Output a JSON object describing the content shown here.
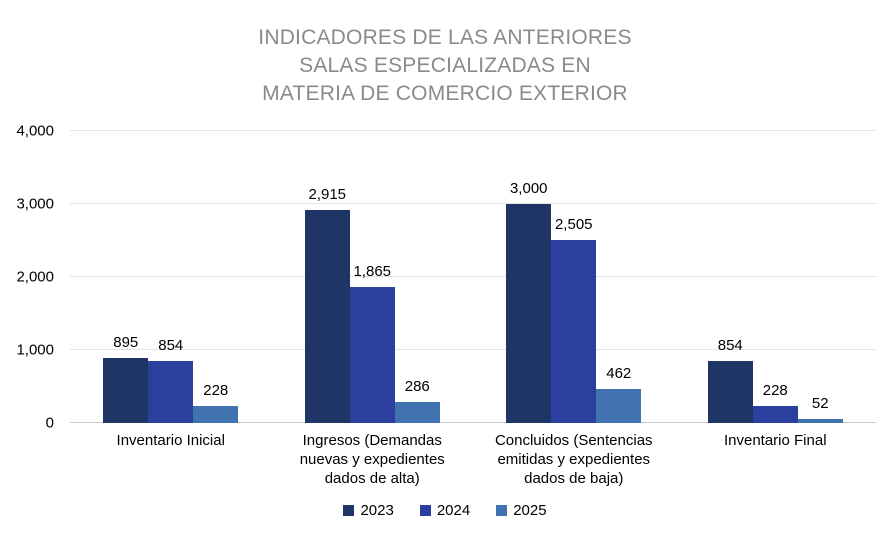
{
  "title": "INDICADORES DE LAS ANTERIORES\nSALAS ESPECIALIZADAS EN\nMATERIA DE COMERCIO EXTERIOR",
  "colors": {
    "title_text": "#8a8a8a",
    "grid": "#e3e3e3",
    "baseline": "#c9c9c9",
    "label_text": "#000000",
    "series_2023": "#1f3566",
    "series_2024": "#2b3f9e",
    "series_2025": "#4172b0"
  },
  "chart_data": {
    "type": "bar",
    "title": "INDICADORES DE LAS ANTERIORES SALAS ESPECIALIZADAS EN MATERIA DE COMERCIO EXTERIOR",
    "categories": [
      "Inventario Inicial",
      "Ingresos (Demandas nuevas y expedientes dados de alta)",
      "Concluidos (Sentencias emitidas y expedientes dados de baja)",
      "Inventario Final"
    ],
    "series": [
      {
        "name": "2023",
        "color": "#1f3566",
        "values": [
          895,
          2915,
          3000,
          854
        ]
      },
      {
        "name": "2024",
        "color": "#2b3f9e",
        "values": [
          854,
          1865,
          2505,
          228
        ]
      },
      {
        "name": "2025",
        "color": "#4172b0",
        "values": [
          228,
          286,
          462,
          52
        ]
      }
    ],
    "data_labels": [
      [
        "895",
        "854",
        "228"
      ],
      [
        "2,915",
        "1,865",
        "286"
      ],
      [
        "3,000",
        "2,505",
        "462"
      ],
      [
        "854",
        "228",
        "52"
      ]
    ],
    "xlabel": "",
    "ylabel": "",
    "ylim": [
      0,
      4000
    ],
    "yticks": [
      0,
      1000,
      2000,
      3000,
      4000
    ],
    "ytick_labels": [
      "0",
      "1,000",
      "2,000",
      "3,000",
      "4,000"
    ],
    "grid": true,
    "legend_position": "bottom"
  }
}
